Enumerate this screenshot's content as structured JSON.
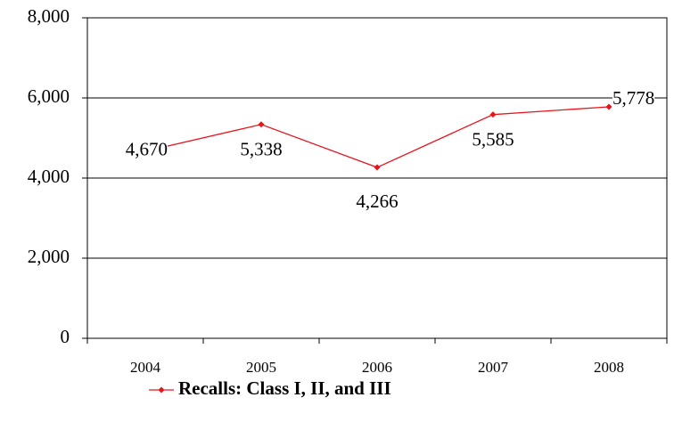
{
  "chart_data": {
    "type": "line",
    "categories": [
      "2004",
      "2005",
      "2006",
      "2007",
      "2008"
    ],
    "series": [
      {
        "name": "Recalls: Class I, II, and III",
        "color": "#e8141c",
        "values": [
          4670,
          5338,
          4266,
          5585,
          5778
        ],
        "value_labels": [
          "4,670",
          "5,338",
          "4,266",
          "5,585",
          "5,778"
        ]
      }
    ],
    "ylim": [
      0,
      8000
    ],
    "yticks": [
      0,
      {
        "value": 2000,
        "label": "2,000"
      },
      {
        "value": 4000,
        "label": "4,000"
      },
      {
        "value": 6000,
        "label": "6,000"
      },
      {
        "value": 8000,
        "label": "8,000"
      }
    ],
    "grid": true,
    "legend": "bottom"
  }
}
